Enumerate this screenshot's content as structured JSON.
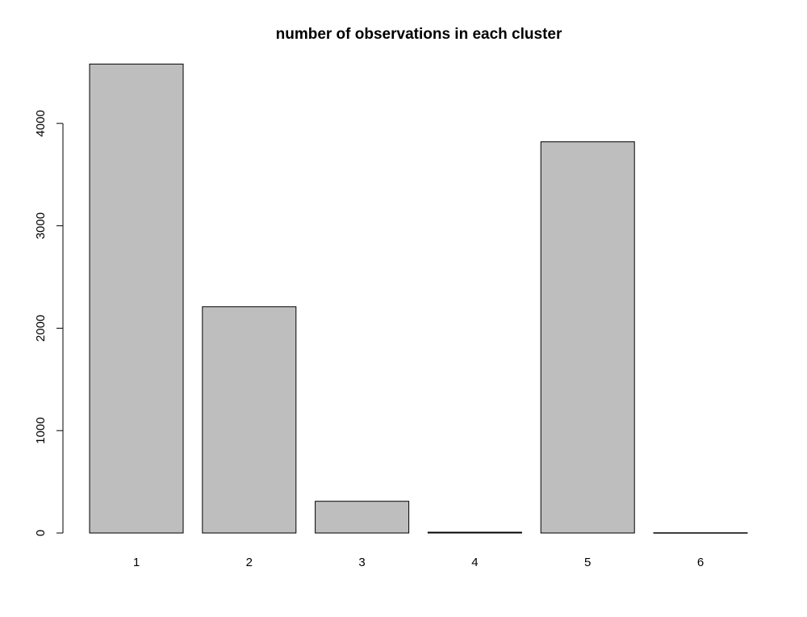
{
  "chart_data": {
    "type": "bar",
    "title": "number of observations in each cluster",
    "xlabel": "",
    "ylabel": "",
    "categories": [
      "1",
      "2",
      "3",
      "4",
      "5",
      "6"
    ],
    "values": [
      4580,
      2210,
      310,
      8,
      3820,
      2
    ],
    "ylim": [
      0,
      4600
    ],
    "yticks": [
      0,
      1000,
      2000,
      3000,
      4000
    ],
    "ytick_labels": [
      "0",
      "1000",
      "2000",
      "3000",
      "4000"
    ],
    "grid": false,
    "legend": "none",
    "bar_color": "#bebebe",
    "edge_color": "#000000"
  }
}
